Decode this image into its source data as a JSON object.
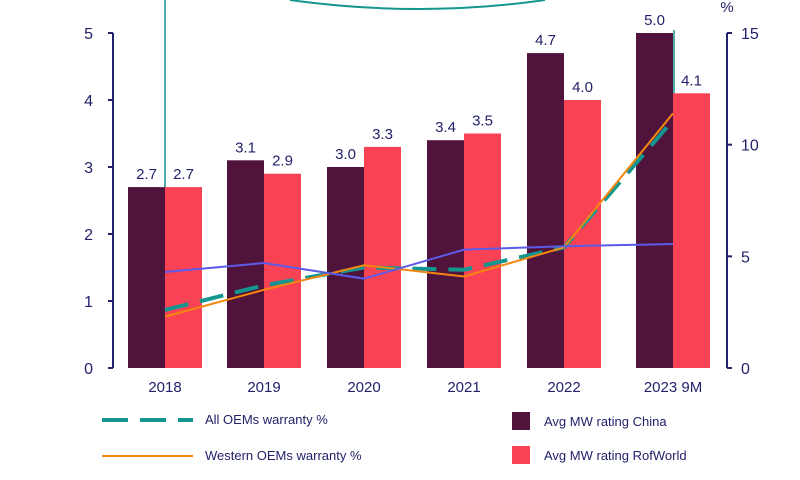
{
  "chart_data": {
    "type": "bar",
    "categories": [
      "2018",
      "2019",
      "2020",
      "2021",
      "2022",
      "2023 9M"
    ],
    "series": [
      {
        "name": "Avg MW rating China",
        "axis": "left",
        "kind": "bar",
        "color": "#50143c",
        "values": [
          2.7,
          3.1,
          3.0,
          3.4,
          4.7,
          5.0
        ]
      },
      {
        "name": "Avg MW rating RofWorld",
        "axis": "left",
        "kind": "bar",
        "color": "#f94355",
        "values": [
          2.7,
          2.9,
          3.3,
          3.5,
          4.0,
          4.1
        ]
      },
      {
        "name": "All OEMs warranty %",
        "axis": "right",
        "kind": "line",
        "style": "dashed",
        "color": "#13968f",
        "values": [
          2.6,
          3.7,
          4.5,
          4.4,
          5.4,
          11.1
        ]
      },
      {
        "name": "Western OEMs warranty %",
        "axis": "right",
        "kind": "line",
        "style": "solid",
        "color": "#f5870f",
        "values": [
          2.3,
          3.5,
          4.6,
          4.1,
          5.4,
          11.4
        ]
      },
      {
        "name": "",
        "axis": "right",
        "kind": "line",
        "style": "solid",
        "color": "#5b5be8",
        "values": [
          4.3,
          4.7,
          4.0,
          5.3,
          5.45,
          5.55
        ]
      }
    ],
    "data_labels": [
      [
        "2.7",
        "3.1",
        "3.0",
        "3.4",
        "4.7",
        "5.0"
      ],
      [
        "2.7",
        "2.9",
        "3.3",
        "3.5",
        "4.0",
        "4.1"
      ]
    ],
    "left_axis": {
      "ylim": [
        0,
        5
      ],
      "ticks": [
        "0",
        "1",
        "2",
        "3",
        "4",
        "5"
      ]
    },
    "right_axis": {
      "label": "%",
      "ylim": [
        0,
        15
      ],
      "ticks": [
        "0",
        "5",
        "10",
        "15"
      ]
    },
    "grid": false,
    "legend": "bottom",
    "axis_color": "#22226b",
    "annotation_color": "#13968f"
  }
}
